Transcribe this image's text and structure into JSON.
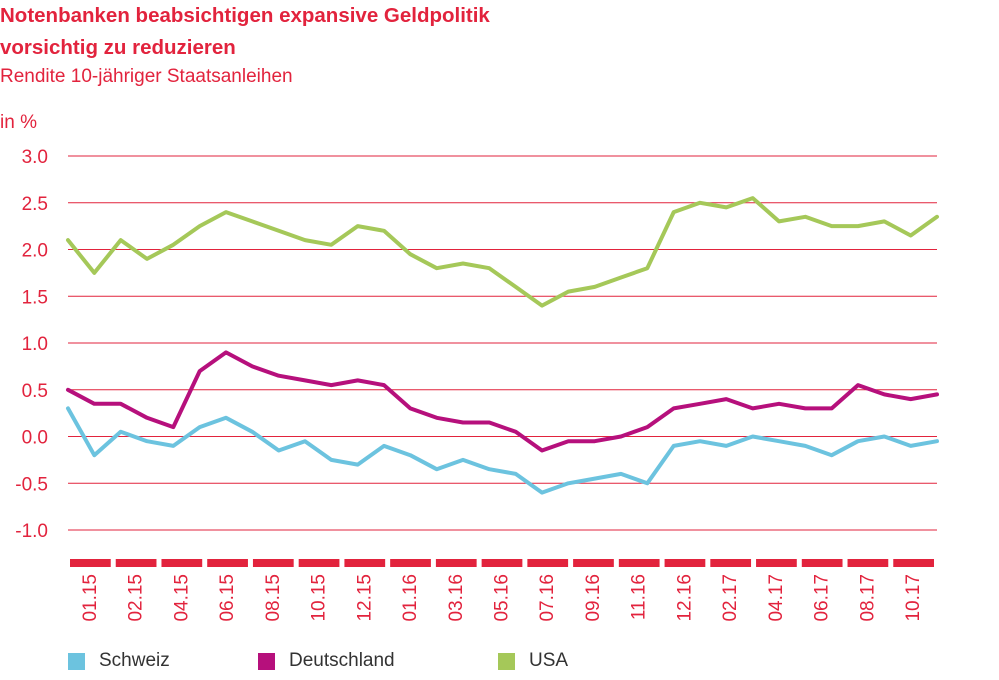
{
  "title_line1": "Notenbanken beabsichtigen expansive Geldpolitik",
  "title_line2": "vorsichtig zu reduzieren",
  "subtitle": "Rendite 10-jähriger Staatsanleihen",
  "unit": "in %",
  "colors": {
    "accent": "#e2233d",
    "schweiz": "#6cc3df",
    "deutschland": "#b6107c",
    "usa": "#a5c859",
    "grid": "#e2233d"
  },
  "chart_data": {
    "type": "line",
    "ylabel": "in %",
    "ylim": [
      -1.0,
      3.0
    ],
    "yticks": [
      "3.0",
      "2.5",
      "2.0",
      "1.5",
      "1.0",
      "0.5",
      "0.0",
      "-0.5",
      "-1.0"
    ],
    "grid": "horizontal",
    "legend_position": "bottom",
    "x_tick_labels": [
      "01.15",
      "02.15",
      "04.15",
      "06.15",
      "08.15",
      "10.15",
      "12.15",
      "01.16",
      "03.16",
      "05.16",
      "07.16",
      "09.16",
      "11.16",
      "12.16",
      "02.17",
      "04.17",
      "06.17",
      "08.17",
      "10.17"
    ],
    "x": [
      "01.15",
      "02.15",
      "03.15",
      "04.15",
      "05.15",
      "06.15",
      "07.15",
      "08.15",
      "09.15",
      "10.15",
      "11.15",
      "12.15",
      "01.16",
      "02.16",
      "03.16",
      "04.16",
      "05.16",
      "06.16",
      "07.16",
      "08.16",
      "09.16",
      "10.16",
      "11.16",
      "12.16",
      "01.17",
      "02.17",
      "03.17",
      "04.17",
      "05.17",
      "06.17",
      "07.17",
      "08.17",
      "09.17",
      "10.17"
    ],
    "series": [
      {
        "name": "Schweiz",
        "color": "#6cc3df",
        "values": [
          0.3,
          -0.2,
          0.05,
          -0.05,
          -0.1,
          0.1,
          0.2,
          0.05,
          -0.15,
          -0.05,
          -0.25,
          -0.3,
          -0.1,
          -0.2,
          -0.35,
          -0.25,
          -0.35,
          -0.4,
          -0.6,
          -0.5,
          -0.45,
          -0.4,
          -0.5,
          -0.1,
          -0.05,
          -0.1,
          0.0,
          -0.05,
          -0.1,
          -0.2,
          -0.05,
          0.0,
          -0.1,
          -0.05
        ]
      },
      {
        "name": "Deutschland",
        "color": "#b6107c",
        "values": [
          0.5,
          0.35,
          0.35,
          0.2,
          0.1,
          0.7,
          0.9,
          0.75,
          0.65,
          0.6,
          0.55,
          0.6,
          0.55,
          0.3,
          0.2,
          0.15,
          0.15,
          0.05,
          -0.15,
          -0.05,
          -0.05,
          0.0,
          0.1,
          0.3,
          0.35,
          0.4,
          0.3,
          0.35,
          0.3,
          0.3,
          0.55,
          0.45,
          0.4,
          0.45
        ]
      },
      {
        "name": "USA",
        "color": "#a5c859",
        "values": [
          2.1,
          1.75,
          2.1,
          1.9,
          2.05,
          2.25,
          2.4,
          2.3,
          2.2,
          2.1,
          2.05,
          2.25,
          2.2,
          1.95,
          1.8,
          1.85,
          1.8,
          1.6,
          1.4,
          1.55,
          1.6,
          1.7,
          1.8,
          2.4,
          2.5,
          2.45,
          2.55,
          2.3,
          2.35,
          2.25,
          2.25,
          2.3,
          2.15,
          2.35
        ]
      }
    ]
  },
  "legend": [
    {
      "label": "Schweiz",
      "color": "#6cc3df"
    },
    {
      "label": "Deutschland",
      "color": "#b6107c"
    },
    {
      "label": "USA",
      "color": "#a5c859"
    }
  ]
}
